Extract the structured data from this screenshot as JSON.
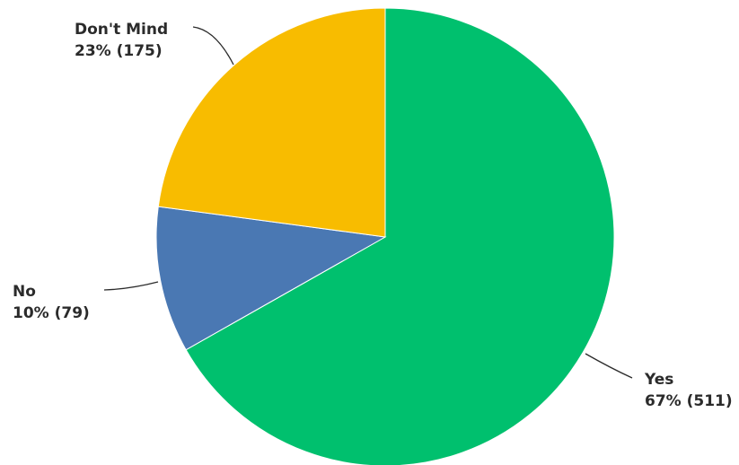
{
  "chart_data": {
    "type": "pie",
    "start_angle_deg": 0,
    "direction": "clockwise",
    "slices": [
      {
        "label": "Yes",
        "value": 511,
        "percent": 67,
        "display": "67% (511)",
        "color": "#00C06E"
      },
      {
        "label": "No",
        "value": 79,
        "percent": 10,
        "display": "10% (79)",
        "color": "#4A78B3"
      },
      {
        "label": "Don't Mind",
        "value": 175,
        "percent": 23,
        "display": "23% (175)",
        "color": "#F8BC00"
      }
    ]
  }
}
